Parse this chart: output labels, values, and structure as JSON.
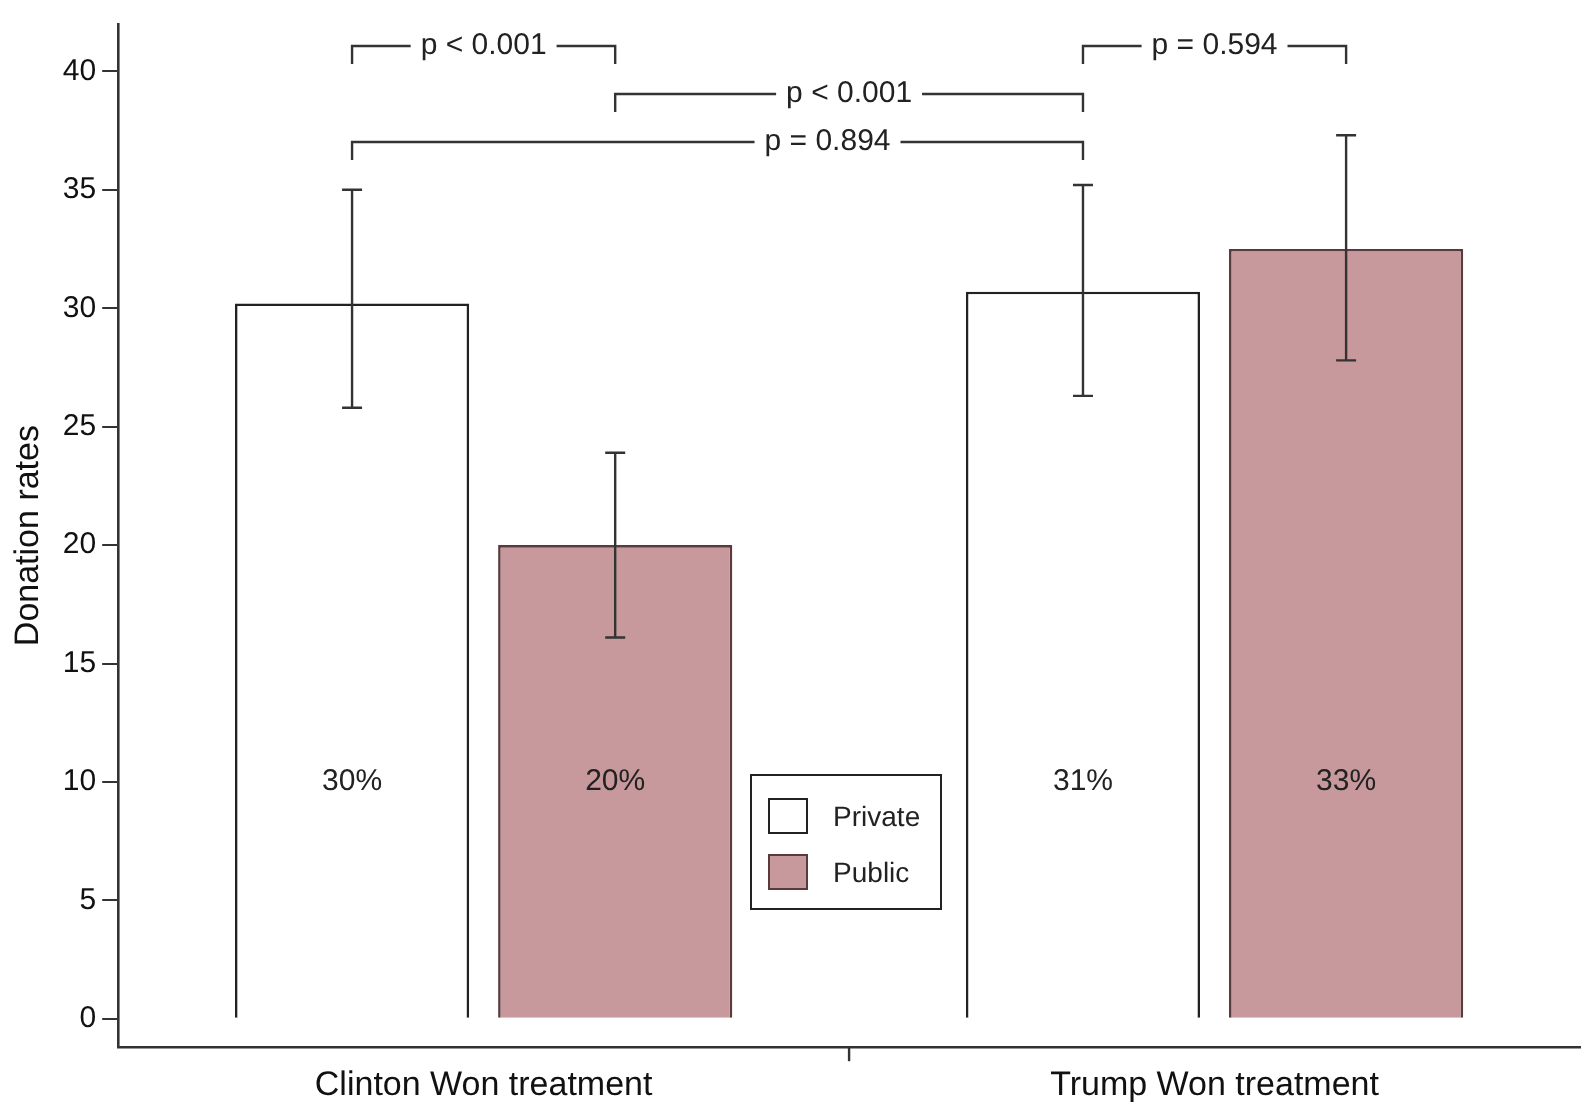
{
  "chart_data": {
    "type": "bar",
    "ylabel": "Donation rates",
    "categories": [
      "Clinton Won treatment",
      "Trump Won treatment"
    ],
    "series": [
      {
        "name": "Private",
        "color": "#ffffff",
        "values": [
          30.2,
          30.7
        ],
        "errors": [
          [
            25.8,
            35.0
          ],
          [
            26.3,
            35.2
          ]
        ],
        "value_labels": [
          "30%",
          "31%"
        ]
      },
      {
        "name": "Public",
        "color": "#c8999c",
        "values": [
          20.0,
          32.5
        ],
        "errors": [
          [
            16.1,
            23.9
          ],
          [
            27.8,
            37.3
          ]
        ],
        "value_labels": [
          "20%",
          "33%"
        ]
      }
    ],
    "ylim": [
      -1.2,
      42
    ],
    "yticks": [
      0,
      5,
      10,
      15,
      20,
      25,
      30,
      35,
      40
    ],
    "grid": false,
    "legend": "bottom",
    "annotations": [
      "p < 0.001",
      "p < 0.001",
      "p = 0.894",
      "p = 0.594"
    ]
  }
}
